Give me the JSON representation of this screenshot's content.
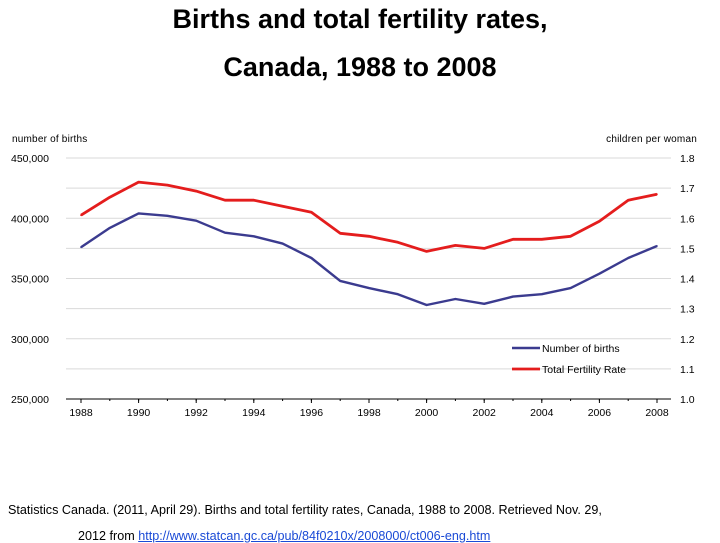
{
  "title": {
    "line1": "Births and total fertility rates,",
    "line2": "Canada, 1988 to 2008"
  },
  "left_axis_caption": "number of births",
  "right_axis_caption": "children per woman",
  "source": {
    "line1": "Statistics Canada. (2011, April 29). Births and total fertility rates, Canada, 1988 to 2008. Retrieved Nov. 29,",
    "line2_prefix": "2012 from ",
    "url": "http://www.statcan.gc.ca/pub/84f0210x/2008000/ct006-eng.htm"
  },
  "colors": {
    "births": "#3b3b8f",
    "tfr": "#e41d1d",
    "grid": "#d9d9d9",
    "axis": "#000000"
  },
  "chart_data": {
    "type": "line",
    "x_label": "",
    "x_ticks": [
      "1988",
      "1990",
      "1992",
      "1994",
      "1996",
      "1998",
      "2000",
      "2002",
      "2004",
      "2006",
      "2008"
    ],
    "x": [
      1988,
      1989,
      1990,
      1991,
      1992,
      1993,
      1994,
      1995,
      1996,
      1997,
      1998,
      1999,
      2000,
      2001,
      2002,
      2003,
      2004,
      2005,
      2006,
      2007,
      2008
    ],
    "y_left": {
      "label": "number of births",
      "range": [
        250000,
        450000
      ],
      "ticks": [
        "250,000",
        "300,000",
        "350,000",
        "400,000",
        "450,000"
      ],
      "tick_values": [
        250000,
        300000,
        350000,
        400000,
        450000
      ]
    },
    "y_right": {
      "label": "children per woman",
      "range": [
        1.0,
        1.8
      ],
      "ticks": [
        "1.0",
        "1.1",
        "1.2",
        "1.3",
        "1.4",
        "1.5",
        "1.6",
        "1.7",
        "1.8"
      ],
      "tick_values": [
        1.0,
        1.1,
        1.2,
        1.3,
        1.4,
        1.5,
        1.6,
        1.7,
        1.8
      ]
    },
    "grid": "horizontal",
    "legend_position": "bottom-right",
    "series": [
      {
        "name": "Number of births",
        "axis": "left",
        "color": "#3b3b8f",
        "values": [
          376000,
          392000,
          404000,
          402000,
          398000,
          388000,
          385000,
          379000,
          367000,
          348000,
          342000,
          337000,
          328000,
          333000,
          329000,
          335000,
          337000,
          342000,
          354000,
          367000,
          377000
        ]
      },
      {
        "name": "Total Fertility Rate",
        "axis": "right",
        "color": "#e41d1d",
        "values": [
          1.61,
          1.67,
          1.72,
          1.71,
          1.69,
          1.66,
          1.66,
          1.64,
          1.62,
          1.55,
          1.54,
          1.52,
          1.49,
          1.51,
          1.5,
          1.53,
          1.53,
          1.54,
          1.59,
          1.66,
          1.68
        ]
      }
    ]
  }
}
